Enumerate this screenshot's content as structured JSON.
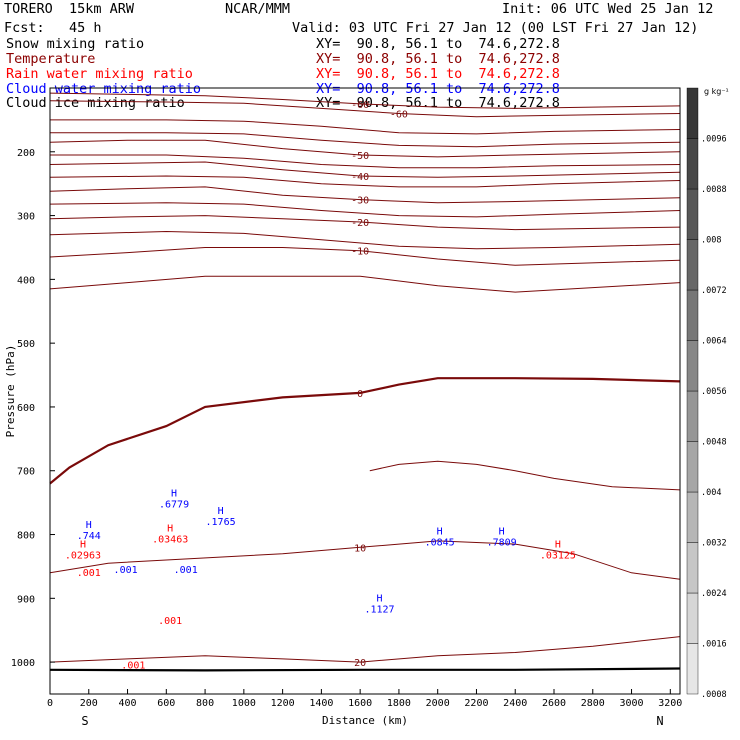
{
  "header": {
    "model": "TORERO  15km ARW",
    "center": "NCAR/MMM",
    "init": "Init: 06 UTC Wed 25 Jan 12",
    "fcst": "Fcst:   45 h",
    "valid": "Valid: 03 UTC Fri 27 Jan 12 (00 LST Fri 27 Jan 12)"
  },
  "fields": [
    {
      "label": "Snow mixing ratio",
      "xy": "XY=  90.8, 56.1 to  74.6,272.8",
      "color": "#000000"
    },
    {
      "label": "Temperature",
      "xy": "XY=  90.8, 56.1 to  74.6,272.8",
      "color": "#8b0000"
    },
    {
      "label": "Rain water mixing ratio",
      "xy": "XY=  90.8, 56.1 to  74.6,272.8",
      "color": "#ff0000"
    },
    {
      "label": "Cloud water mixing ratio",
      "xy": "XY=  90.8, 56.1 to  74.6,272.8",
      "color": "#0000ff"
    },
    {
      "label": "Cloud ice mixing ratio",
      "xy": "XY=  90.8, 56.1 to  74.6,272.8",
      "color": "#000000"
    }
  ],
  "colorbar": {
    "unit": "g kg⁻¹",
    "labels": [
      ".0096",
      ".0088",
      ".008",
      ".0072",
      ".0064",
      ".0056",
      ".0048",
      ".004",
      ".0032",
      ".0024",
      ".0016",
      ".0008"
    ],
    "levels": [
      0.0008,
      0.0016,
      0.0024,
      0.0032,
      0.004,
      0.0048,
      0.0056,
      0.0064,
      0.0072,
      0.008,
      0.0088,
      0.0096,
      0.0104
    ]
  },
  "chart_data": {
    "type": "contour",
    "xlabel": "Distance (km)",
    "ylabel": "Pressure (hPa)",
    "xlim": [
      0,
      3250
    ],
    "ylim": [
      1050,
      100
    ],
    "xticks": [
      0,
      200,
      400,
      600,
      800,
      1000,
      1200,
      1400,
      1600,
      1800,
      2000,
      2200,
      2400,
      2600,
      2800,
      3000,
      3200
    ],
    "yticks": [
      200,
      300,
      400,
      500,
      600,
      700,
      800,
      900,
      1000
    ],
    "ytick_labels": [
      "200",
      "300",
      "400",
      "500",
      "600",
      "700",
      "800",
      "900",
      "1000"
    ],
    "direction_left": "S",
    "direction_right": "N",
    "temperature_isotherms_C": [
      {
        "label": "-60",
        "points": [
          [
            0,
            108
          ],
          [
            400,
            110
          ],
          [
            800,
            112
          ],
          [
            1200,
            118
          ],
          [
            1600,
            125
          ],
          [
            2000,
            130
          ],
          [
            2400,
            132
          ],
          [
            2800,
            130
          ],
          [
            3250,
            128
          ]
        ]
      },
      {
        "label": "-60",
        "points": [
          [
            0,
            120
          ],
          [
            600,
            122
          ],
          [
            1000,
            124
          ],
          [
            1400,
            132
          ],
          [
            1800,
            140
          ],
          [
            2200,
            145
          ],
          [
            2600,
            143
          ],
          [
            3250,
            140
          ]
        ]
      },
      {
        "label": "",
        "points": [
          [
            0,
            150
          ],
          [
            600,
            150
          ],
          [
            1000,
            152
          ],
          [
            1400,
            160
          ],
          [
            1800,
            170
          ],
          [
            2200,
            172
          ],
          [
            2600,
            168
          ],
          [
            3250,
            165
          ]
        ]
      },
      {
        "label": "",
        "points": [
          [
            0,
            170
          ],
          [
            600,
            170
          ],
          [
            1000,
            172
          ],
          [
            1400,
            182
          ],
          [
            1800,
            190
          ],
          [
            2200,
            192
          ],
          [
            2600,
            188
          ],
          [
            3250,
            185
          ]
        ]
      },
      {
        "label": "-50",
        "points": [
          [
            0,
            185
          ],
          [
            400,
            182
          ],
          [
            800,
            182
          ],
          [
            1200,
            195
          ],
          [
            1600,
            205
          ],
          [
            2000,
            208
          ],
          [
            2400,
            205
          ],
          [
            3250,
            200
          ]
        ]
      },
      {
        "label": "",
        "points": [
          [
            0,
            205
          ],
          [
            600,
            205
          ],
          [
            1000,
            210
          ],
          [
            1400,
            220
          ],
          [
            1800,
            225
          ],
          [
            2200,
            225
          ],
          [
            2600,
            222
          ],
          [
            3250,
            220
          ]
        ]
      },
      {
        "label": "-40",
        "points": [
          [
            0,
            220
          ],
          [
            400,
            218
          ],
          [
            800,
            216
          ],
          [
            1200,
            228
          ],
          [
            1600,
            238
          ],
          [
            2000,
            240
          ],
          [
            2400,
            238
          ],
          [
            3250,
            232
          ]
        ]
      },
      {
        "label": "",
        "points": [
          [
            0,
            240
          ],
          [
            600,
            238
          ],
          [
            1000,
            240
          ],
          [
            1400,
            250
          ],
          [
            1800,
            255
          ],
          [
            2200,
            255
          ],
          [
            2600,
            250
          ],
          [
            3250,
            245
          ]
        ]
      },
      {
        "label": "-30",
        "points": [
          [
            0,
            262
          ],
          [
            400,
            258
          ],
          [
            800,
            255
          ],
          [
            1200,
            268
          ],
          [
            1600,
            275
          ],
          [
            2000,
            280
          ],
          [
            2400,
            278
          ],
          [
            3250,
            272
          ]
        ]
      },
      {
        "label": "",
        "points": [
          [
            0,
            282
          ],
          [
            600,
            280
          ],
          [
            1000,
            282
          ],
          [
            1400,
            292
          ],
          [
            1800,
            300
          ],
          [
            2200,
            302
          ],
          [
            2600,
            298
          ],
          [
            3250,
            292
          ]
        ]
      },
      {
        "label": "-20",
        "points": [
          [
            0,
            305
          ],
          [
            400,
            302
          ],
          [
            800,
            300
          ],
          [
            1200,
            305
          ],
          [
            1600,
            310
          ],
          [
            2000,
            318
          ],
          [
            2400,
            322
          ],
          [
            3250,
            318
          ]
        ]
      },
      {
        "label": "",
        "points": [
          [
            0,
            330
          ],
          [
            600,
            325
          ],
          [
            1000,
            328
          ],
          [
            1400,
            338
          ],
          [
            1800,
            348
          ],
          [
            2200,
            352
          ],
          [
            2600,
            350
          ],
          [
            3250,
            345
          ]
        ]
      },
      {
        "label": "-10",
        "points": [
          [
            0,
            365
          ],
          [
            400,
            358
          ],
          [
            800,
            350
          ],
          [
            1200,
            350
          ],
          [
            1600,
            355
          ],
          [
            2000,
            368
          ],
          [
            2400,
            378
          ],
          [
            3250,
            370
          ]
        ]
      },
      {
        "label": "",
        "points": [
          [
            0,
            415
          ],
          [
            400,
            405
          ],
          [
            800,
            395
          ],
          [
            1200,
            395
          ],
          [
            1600,
            395
          ],
          [
            2000,
            410
          ],
          [
            2400,
            420
          ],
          [
            3250,
            405
          ]
        ]
      },
      {
        "label": "0",
        "points": [
          [
            0,
            720
          ],
          [
            100,
            695
          ],
          [
            300,
            660
          ],
          [
            600,
            630
          ],
          [
            800,
            600
          ],
          [
            1200,
            585
          ],
          [
            1600,
            578
          ],
          [
            1800,
            565
          ],
          [
            2000,
            555
          ],
          [
            2400,
            555
          ],
          [
            2800,
            556
          ],
          [
            3250,
            560
          ]
        ]
      },
      {
        "label": "10",
        "points": [
          [
            0,
            860
          ],
          [
            300,
            845
          ],
          [
            600,
            840
          ],
          [
            900,
            835
          ],
          [
            1200,
            830
          ],
          [
            1400,
            825
          ],
          [
            1600,
            820
          ],
          [
            1800,
            815
          ],
          [
            2000,
            810
          ],
          [
            2400,
            815
          ],
          [
            2700,
            830
          ],
          [
            3000,
            860
          ],
          [
            3250,
            870
          ]
        ]
      },
      {
        "label": "20",
        "points": [
          [
            0,
            1000
          ],
          [
            400,
            995
          ],
          [
            800,
            990
          ],
          [
            1200,
            995
          ],
          [
            1600,
            1000
          ],
          [
            2000,
            990
          ],
          [
            2400,
            985
          ],
          [
            2800,
            975
          ],
          [
            3250,
            960
          ]
        ]
      }
    ],
    "warm_contour_10_region": [
      [
        1650,
        700
      ],
      [
        1800,
        690
      ],
      [
        2000,
        685
      ],
      [
        2200,
        690
      ],
      [
        2400,
        700
      ],
      [
        2600,
        712
      ],
      [
        2900,
        725
      ],
      [
        3250,
        730
      ]
    ],
    "ground_surface_hPa": [
      [
        0,
        1012
      ],
      [
        800,
        1013
      ],
      [
        1600,
        1012
      ],
      [
        2400,
        1012
      ],
      [
        3250,
        1010
      ]
    ],
    "annotations": [
      {
        "text": "H",
        "label": ".6779",
        "x": 640,
        "p": 740,
        "color": "#0000ff"
      },
      {
        "text": "H",
        "label": ".1765",
        "x": 880,
        "p": 768,
        "color": "#0000ff"
      },
      {
        "text": "H",
        "label": ".744",
        "x": 200,
        "p": 790,
        "color": "#0000ff"
      },
      {
        "text": "H",
        "label": ".02963",
        "x": 170,
        "p": 820,
        "color": "#ff0000"
      },
      {
        "text": "H",
        "label": ".03463",
        "x": 620,
        "p": 795,
        "color": "#ff0000"
      },
      {
        "text": "H",
        "label": ".0845",
        "x": 2010,
        "p": 800,
        "color": "#0000ff"
      },
      {
        "text": "H",
        "label": ".7809",
        "x": 2330,
        "p": 800,
        "color": "#0000ff"
      },
      {
        "text": "H",
        "label": ".03125",
        "x": 2620,
        "p": 820,
        "color": "#ff0000"
      },
      {
        "text": "H",
        "label": ".1127",
        "x": 1700,
        "p": 905,
        "color": "#0000ff"
      },
      {
        "text": "",
        "label": ".001",
        "x": 200,
        "p": 865,
        "color": "#ff0000"
      },
      {
        "text": "",
        "label": ".001",
        "x": 390,
        "p": 860,
        "color": "#0000ff"
      },
      {
        "text": "",
        "label": ".001",
        "x": 700,
        "p": 860,
        "color": "#0000ff"
      },
      {
        "text": "",
        "label": ".001",
        "x": 620,
        "p": 940,
        "color": "#ff0000"
      },
      {
        "text": "",
        "label": ".001",
        "x": 430,
        "p": 1010,
        "color": "#ff0000"
      }
    ]
  }
}
